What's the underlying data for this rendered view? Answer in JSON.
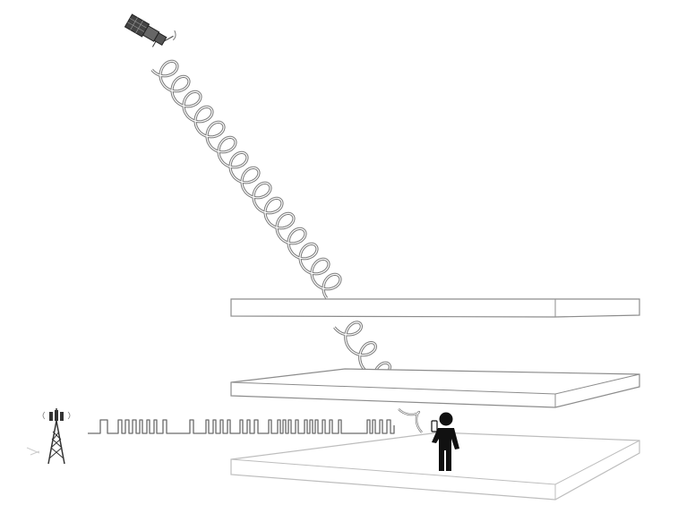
{
  "diagram": {
    "colors": {
      "background": "#ffffff",
      "slab_stroke": "#8c8c8c",
      "slab_top": "#ffffff",
      "slab_side": "#ffffff",
      "ground_stroke": "#bdbdbd",
      "wave": "#7a7a7a",
      "wave_inner": "#ffffff",
      "person": "#111111",
      "satellite": "#555555",
      "tower": "#333333",
      "square_wave": "#6a6a6a"
    },
    "icons": {
      "satellite": "satellite-icon",
      "cell_tower": "cell-tower-icon",
      "person": "person-icon",
      "phone": "phone-icon"
    }
  }
}
